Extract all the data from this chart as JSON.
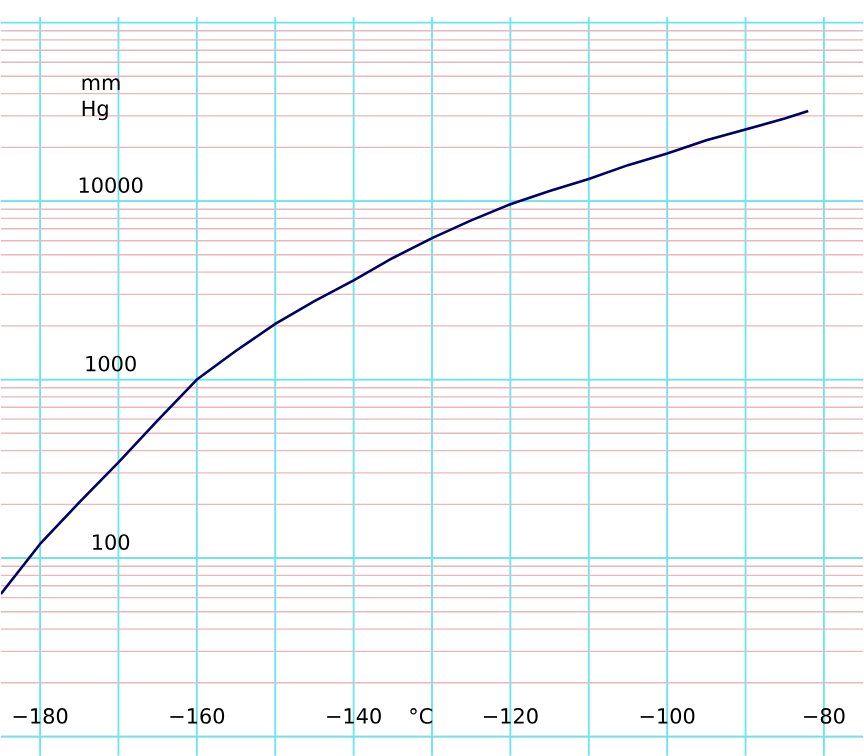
{
  "chart_data": {
    "type": "line",
    "xlabel": "°C",
    "ylabel": "mm Hg",
    "x": [
      -185,
      -180,
      -175,
      -170,
      -165,
      -160,
      -155,
      -150,
      -145,
      -140,
      -135,
      -130,
      -125,
      -120,
      -115,
      -110,
      -105,
      -100,
      -95,
      -90,
      -85,
      -82
    ],
    "series": [
      {
        "color": "#000066",
        "values": [
          63,
          120,
          205,
          344,
          590,
          1000,
          1450,
          2050,
          2750,
          3600,
          4800,
          6200,
          7800,
          9600,
          11400,
          13300,
          15900,
          18500,
          21900,
          25200,
          29000,
          32000
        ]
      }
    ],
    "xlim": [
      -185,
      -75
    ],
    "ylim": [
      7.8,
      107000
    ],
    "xticks": [
      {
        "value": -180,
        "label": "−180"
      },
      {
        "value": -170,
        "label": null
      },
      {
        "value": -160,
        "label": "−160"
      },
      {
        "value": -150,
        "label": null
      },
      {
        "value": -140,
        "label": "−140"
      },
      {
        "value": -130,
        "label": null
      },
      {
        "value": -120,
        "label": "−120"
      },
      {
        "value": -110,
        "label": null
      },
      {
        "value": -100,
        "label": "−100"
      },
      {
        "value": -90,
        "label": null
      },
      {
        "value": -80,
        "label": "−80"
      }
    ],
    "yticks": [
      {
        "value": 10,
        "label": null
      },
      100,
      1000,
      10000,
      {
        "value": 100000,
        "label": null
      }
    ],
    "log": "y",
    "grid": true
  }
}
